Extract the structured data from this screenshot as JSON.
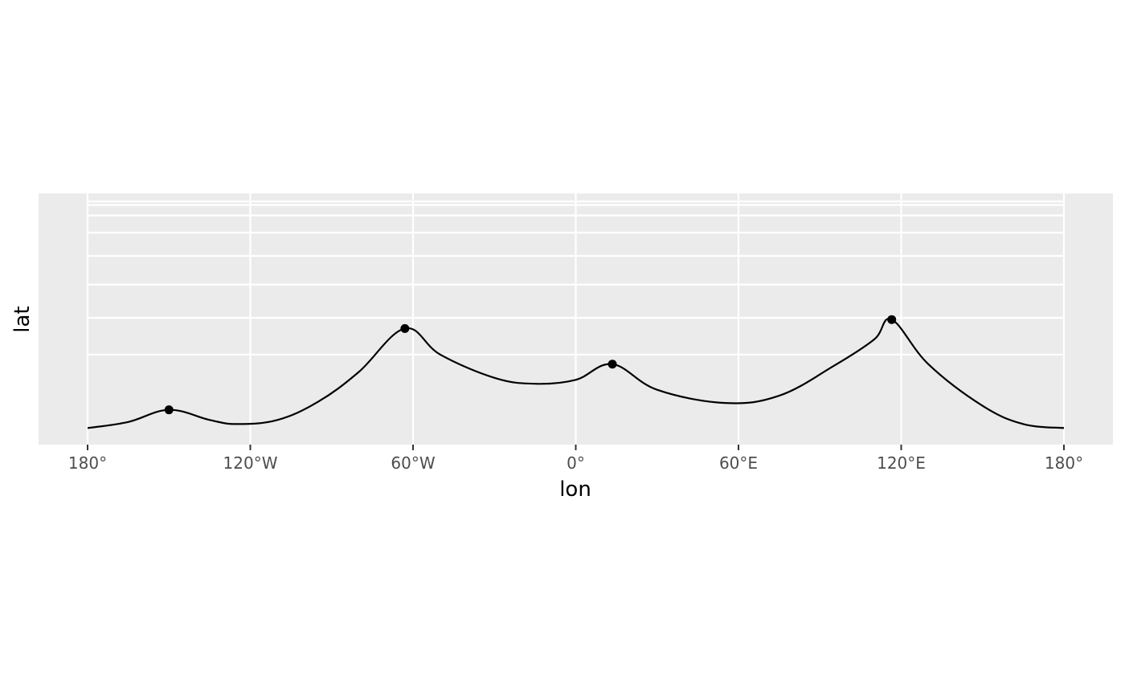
{
  "chart_data": {
    "type": "line",
    "title": "",
    "xlabel": "lon",
    "ylabel": "lat",
    "xlim": [
      -180,
      180
    ],
    "x_ticks": [
      {
        "value": -180,
        "label": "180°"
      },
      {
        "value": -120,
        "label": "120°W"
      },
      {
        "value": -60,
        "label": "60°W"
      },
      {
        "value": 0,
        "label": "0°"
      },
      {
        "value": 60,
        "label": "60°E"
      },
      {
        "value": 120,
        "label": "120°E"
      },
      {
        "value": 180,
        "label": "180°"
      }
    ],
    "grid": true,
    "legend": "none",
    "colors": {
      "panel_background": "#ebebeb",
      "grid": "#ffffff",
      "line": "#000000",
      "point": "#000000"
    },
    "series": [
      {
        "type": "line",
        "points": [
          [
            -180,
            88.5
          ],
          [
            -165,
            87.0
          ],
          [
            -150,
            84.0
          ],
          [
            -135,
            86.5
          ],
          [
            -125,
            87.5
          ],
          [
            -110,
            86.5
          ],
          [
            -95,
            82.0
          ],
          [
            -80,
            74.5
          ],
          [
            -63,
            63.0
          ],
          [
            -50,
            70.0
          ],
          [
            -30,
            76.0
          ],
          [
            -15,
            77.5
          ],
          [
            0,
            76.5
          ],
          [
            13.5,
            72.5
          ],
          [
            30,
            79.0
          ],
          [
            55,
            82.3
          ],
          [
            75,
            80.5
          ],
          [
            95,
            73.0
          ],
          [
            110,
            66.0
          ],
          [
            116.5,
            60.5
          ],
          [
            130,
            72.5
          ],
          [
            150,
            83.0
          ],
          [
            165,
            87.5
          ],
          [
            180,
            88.5
          ]
        ]
      },
      {
        "type": "point",
        "points": [
          [
            -150,
            84.0
          ],
          [
            -63,
            63.0
          ],
          [
            13.5,
            72.5
          ],
          [
            116.5,
            60.5
          ]
        ]
      }
    ]
  }
}
